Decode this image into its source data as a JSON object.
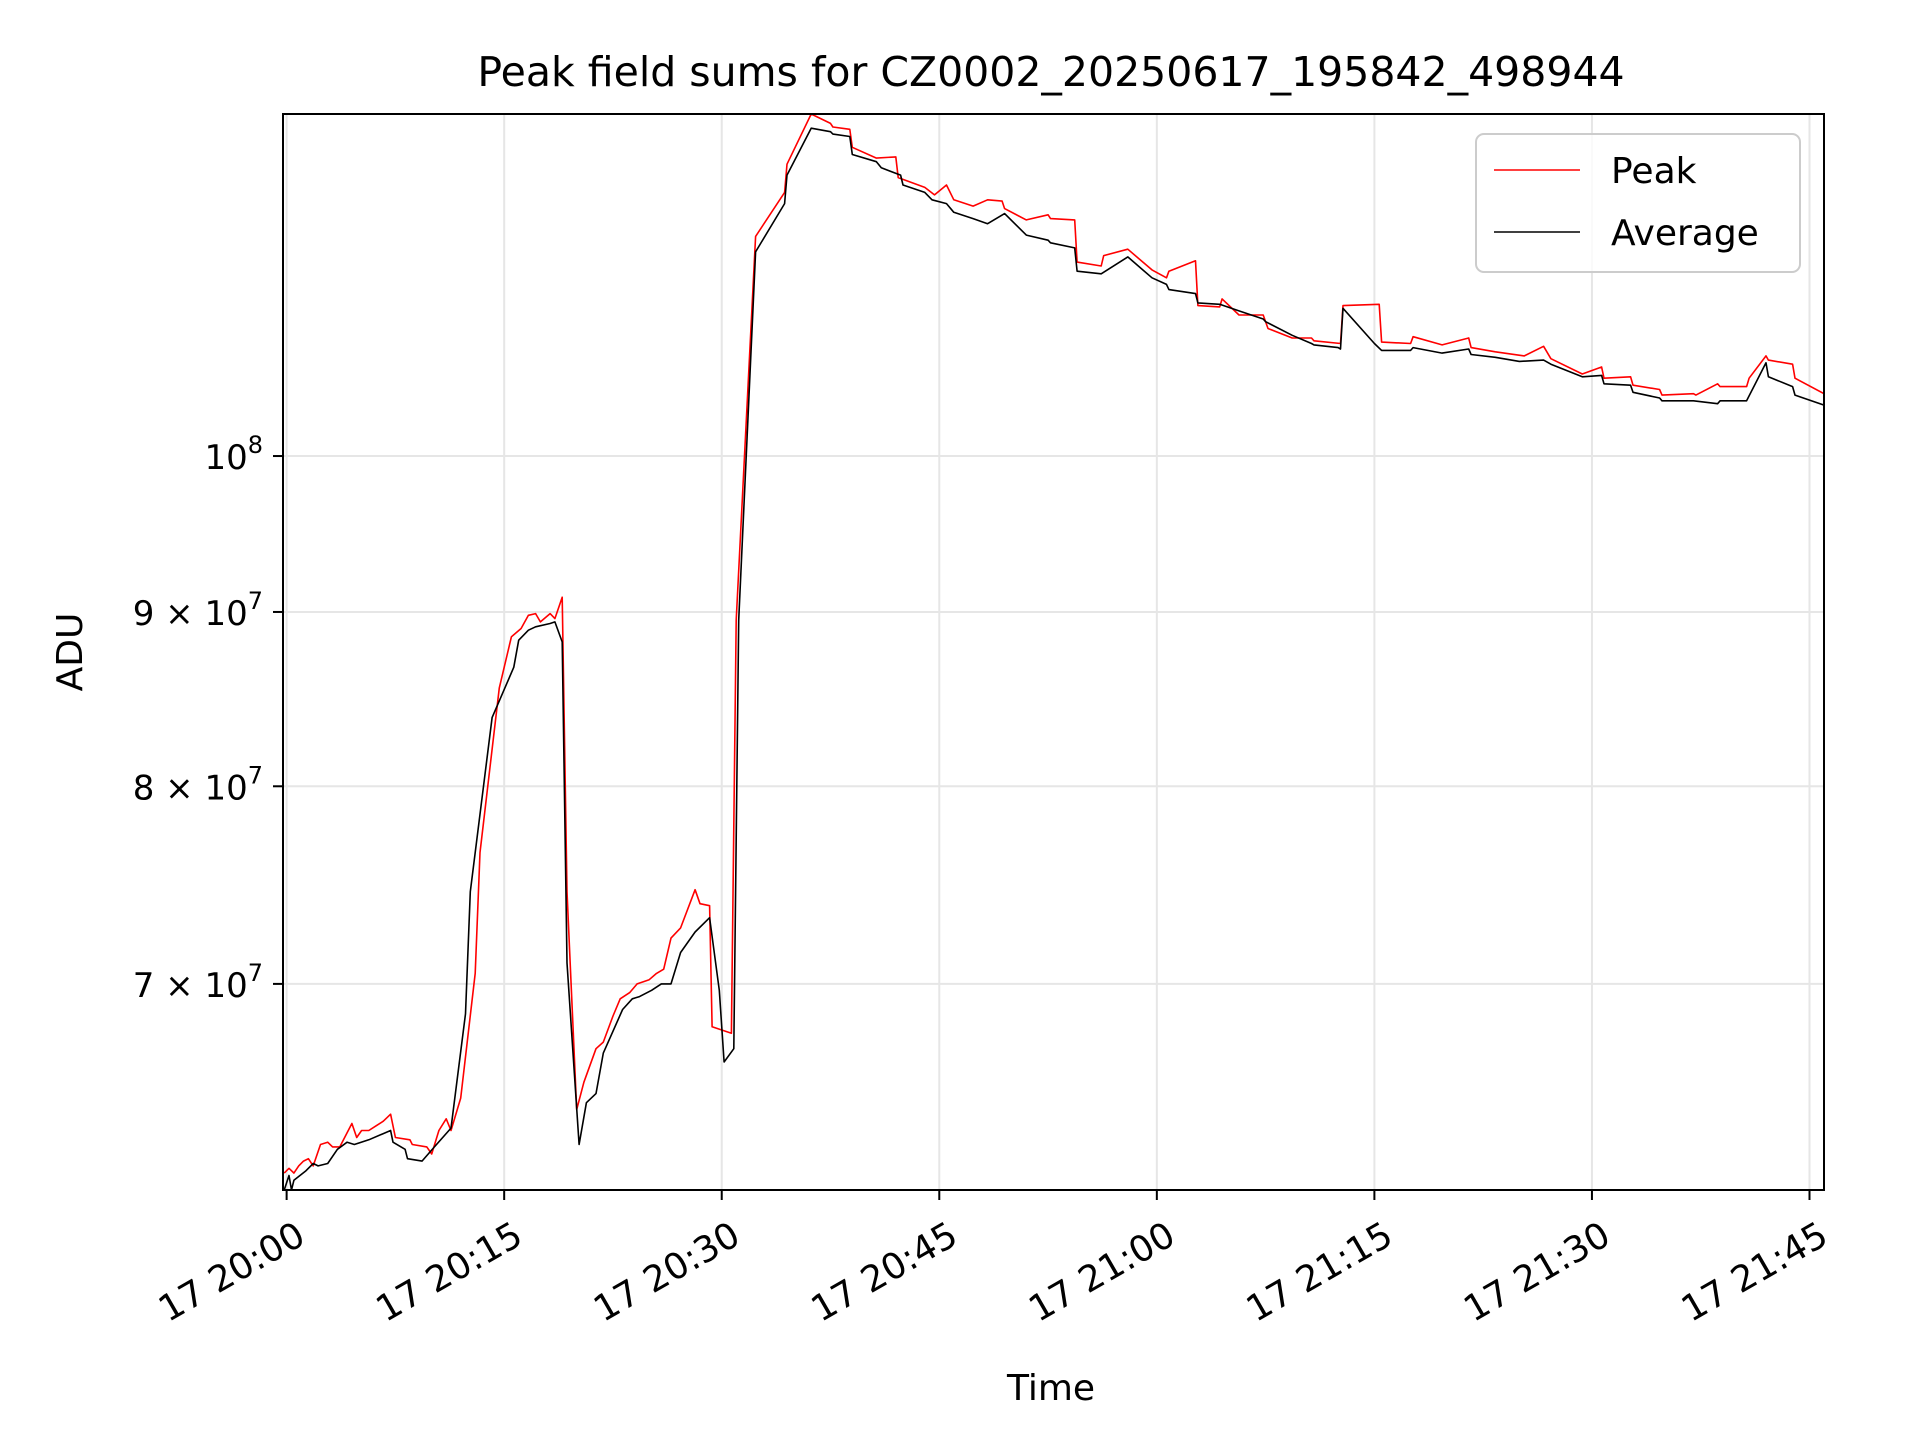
{
  "chart_data": {
    "type": "line",
    "title": "Peak field sums for CZ0002_20250617_195842_498944",
    "xlabel": "Time",
    "ylabel": "ADU",
    "yscale": "log",
    "date": "2025-06-17",
    "xlim": [
      "19:59:45",
      "21:46:00"
    ],
    "ylim": [
      60900000,
      126000000
    ],
    "x_ticks": [
      "20:00",
      "20:15",
      "20:30",
      "20:45",
      "21:00",
      "21:15",
      "21:30",
      "21:45"
    ],
    "x_tick_labels": [
      "17 20:00",
      "17 20:15",
      "17 20:30",
      "17 20:45",
      "17 21:00",
      "17 21:15",
      "17 21:30",
      "17 21:45"
    ],
    "y_ticks": [
      {
        "value": 70000000,
        "mantissa": "7",
        "exponent": "7"
      },
      {
        "value": 80000000,
        "mantissa": "8",
        "exponent": "7"
      },
      {
        "value": 90000000,
        "mantissa": "9",
        "exponent": "7"
      },
      {
        "value": 100000000,
        "mantissa": "",
        "exponent": "8"
      }
    ],
    "grid": true,
    "legend_position": "top-right",
    "series": [
      {
        "name": "Peak",
        "color": "#ff0000",
        "points": [
          [
            "19:59:50",
            61600000.0
          ],
          [
            "20:00:10",
            61800000.0
          ],
          [
            "20:00:30",
            61600000.0
          ],
          [
            "20:00:50",
            61900000.0
          ],
          [
            "20:01:10",
            62100000.0
          ],
          [
            "20:01:30",
            62200000.0
          ],
          [
            "20:01:50",
            61900000.0
          ],
          [
            "20:02:20",
            62800000.0
          ],
          [
            "20:02:50",
            62900000.0
          ],
          [
            "20:03:10",
            62700000.0
          ],
          [
            "20:03:40",
            62700000.0
          ],
          [
            "20:04:10",
            63300000.0
          ],
          [
            "20:04:30",
            63700000.0
          ],
          [
            "20:04:50",
            63100000.0
          ],
          [
            "20:05:10",
            63400000.0
          ],
          [
            "20:05:40",
            63400000.0
          ],
          [
            "20:06:10",
            63600000.0
          ],
          [
            "20:06:40",
            63800000.0
          ],
          [
            "20:07:10",
            64100000.0
          ],
          [
            "20:07:30",
            63100000.0
          ],
          [
            "20:08:30",
            63000000.0
          ],
          [
            "20:08:40",
            62800000.0
          ],
          [
            "20:09:40",
            62700000.0
          ],
          [
            "20:10:00",
            62400000.0
          ],
          [
            "20:10:30",
            63400000.0
          ],
          [
            "20:11:00",
            63900000.0
          ],
          [
            "20:11:20",
            63400000.0
          ],
          [
            "20:12:00",
            64800000.0
          ],
          [
            "20:13:00",
            70500000.0
          ],
          [
            "20:13:20",
            76500000.0
          ],
          [
            "20:14:40",
            85500000.0
          ],
          [
            "20:15:30",
            88500000.0
          ],
          [
            "20:16:10",
            89000000.0
          ],
          [
            "20:16:40",
            89800000.0
          ],
          [
            "20:17:10",
            89900000.0
          ],
          [
            "20:17:30",
            89400000.0
          ],
          [
            "20:18:10",
            89900000.0
          ],
          [
            "20:18:30",
            89600000.0
          ],
          [
            "20:19:00",
            90900000.0
          ],
          [
            "20:19:20",
            74500000.0
          ],
          [
            "20:20:00",
            64300000.0
          ],
          [
            "20:20:30",
            65500000.0
          ],
          [
            "20:21:20",
            67000000.0
          ],
          [
            "20:21:50",
            67300000.0
          ],
          [
            "20:22:30",
            68500000.0
          ],
          [
            "20:23:00",
            69300000.0
          ],
          [
            "20:23:40",
            69600000.0
          ],
          [
            "20:24:10",
            70000000.0
          ],
          [
            "20:25:00",
            70200000.0
          ],
          [
            "20:25:30",
            70500000.0
          ],
          [
            "20:26:00",
            70700000.0
          ],
          [
            "20:26:30",
            72200000.0
          ],
          [
            "20:27:10",
            72700000.0
          ],
          [
            "20:28:10",
            74600000.0
          ],
          [
            "20:28:30",
            73900000.0
          ],
          [
            "20:29:10",
            73800000.0
          ],
          [
            "20:29:20",
            68000000.0
          ],
          [
            "20:30:40",
            67700000.0
          ],
          [
            "20:31:00",
            89500000.0
          ],
          [
            "20:32:20",
            116000000.0
          ],
          [
            "20:34:20",
            119500000.0
          ],
          [
            "20:34:30",
            121800000.0
          ],
          [
            "20:36:10",
            126000000.0
          ],
          [
            "20:37:30",
            125200000.0
          ],
          [
            "20:37:40",
            124900000.0
          ],
          [
            "20:38:50",
            124700000.0
          ],
          [
            "20:39:00",
            123200000.0
          ],
          [
            "20:40:40",
            122300000.0
          ],
          [
            "20:42:00",
            122400000.0
          ],
          [
            "20:42:10",
            120700000.0
          ],
          [
            "20:44:00",
            119900000.0
          ],
          [
            "20:44:40",
            119300000.0
          ],
          [
            "20:45:30",
            120100000.0
          ],
          [
            "20:46:00",
            118900000.0
          ],
          [
            "20:47:20",
            118400000.0
          ],
          [
            "20:48:20",
            118900000.0
          ],
          [
            "20:49:20",
            118800000.0
          ],
          [
            "20:49:30",
            118200000.0
          ],
          [
            "20:51:00",
            117300000.0
          ],
          [
            "20:52:30",
            117700000.0
          ],
          [
            "20:52:40",
            117400000.0
          ],
          [
            "20:54:20",
            117300000.0
          ],
          [
            "20:54:30",
            114000000.0
          ],
          [
            "20:56:10",
            113700000.0
          ],
          [
            "20:56:20",
            114500000.0
          ],
          [
            "20:58:00",
            115000000.0
          ],
          [
            "20:59:40",
            113400000.0
          ],
          [
            "21:00:40",
            112800000.0
          ],
          [
            "21:00:50",
            113300000.0
          ],
          [
            "21:02:40",
            114100000.0
          ],
          [
            "21:02:50",
            110700000.0
          ],
          [
            "21:04:20",
            110600000.0
          ],
          [
            "21:04:30",
            111200000.0
          ],
          [
            "21:05:40",
            110000000.0
          ],
          [
            "21:07:20",
            110000000.0
          ],
          [
            "21:07:40",
            109000000.0
          ],
          [
            "21:09:20",
            108300000.0
          ],
          [
            "21:10:40",
            108300000.0
          ],
          [
            "21:10:50",
            108100000.0
          ],
          [
            "21:12:40",
            107900000.0
          ],
          [
            "21:12:50",
            110700000.0
          ],
          [
            "21:15:20",
            110800000.0
          ],
          [
            "21:15:30",
            108000000.0
          ],
          [
            "21:17:30",
            107900000.0
          ],
          [
            "21:17:40",
            108400000.0
          ],
          [
            "21:19:40",
            107800000.0
          ],
          [
            "21:21:30",
            108300000.0
          ],
          [
            "21:21:40",
            107600000.0
          ],
          [
            "21:23:20",
            107300000.0
          ],
          [
            "21:25:20",
            107000000.0
          ],
          [
            "21:26:40",
            107700000.0
          ],
          [
            "21:27:10",
            106800000.0
          ],
          [
            "21:29:20",
            105700000.0
          ],
          [
            "21:30:40",
            106200000.0
          ],
          [
            "21:30:50",
            105400000.0
          ],
          [
            "21:32:40",
            105500000.0
          ],
          [
            "21:32:50",
            104900000.0
          ],
          [
            "21:34:40",
            104600000.0
          ],
          [
            "21:34:50",
            104200000.0
          ],
          [
            "21:37:00",
            104300000.0
          ],
          [
            "21:37:10",
            104200000.0
          ],
          [
            "21:38:40",
            105000000.0
          ],
          [
            "21:38:50",
            104800000.0
          ],
          [
            "21:40:40",
            104800000.0
          ],
          [
            "21:40:50",
            105400000.0
          ],
          [
            "21:42:00",
            107000000.0
          ],
          [
            "21:42:10",
            106700000.0
          ],
          [
            "21:43:50",
            106400000.0
          ],
          [
            "21:44:00",
            105400000.0
          ],
          [
            "21:46:00",
            104300000.0
          ]
        ]
      },
      {
        "name": "Average",
        "color": "#000000",
        "points": [
          [
            "19:59:50",
            60900000.0
          ],
          [
            "20:00:10",
            61500000.0
          ],
          [
            "20:00:20",
            60900000.0
          ],
          [
            "20:00:30",
            61300000.0
          ],
          [
            "20:01:20",
            61700000.0
          ],
          [
            "20:01:50",
            62000000.0
          ],
          [
            "20:02:10",
            61900000.0
          ],
          [
            "20:02:50",
            62000000.0
          ],
          [
            "20:03:30",
            62600000.0
          ],
          [
            "20:04:10",
            62900000.0
          ],
          [
            "20:04:40",
            62800000.0
          ],
          [
            "20:05:40",
            63000000.0
          ],
          [
            "20:07:10",
            63400000.0
          ],
          [
            "20:07:20",
            62900000.0
          ],
          [
            "20:08:10",
            62600000.0
          ],
          [
            "20:08:20",
            62200000.0
          ],
          [
            "20:09:20",
            62100000.0
          ],
          [
            "20:10:20",
            62800000.0
          ],
          [
            "20:11:20",
            63500000.0
          ],
          [
            "20:12:20",
            68600000.0
          ],
          [
            "20:12:40",
            74500000.0
          ],
          [
            "20:14:10",
            83800000.0
          ],
          [
            "20:15:40",
            86700000.0
          ],
          [
            "20:16:00",
            88300000.0
          ],
          [
            "20:16:40",
            88900000.0
          ],
          [
            "20:17:10",
            89100000.0
          ],
          [
            "20:18:10",
            89300000.0
          ],
          [
            "20:18:30",
            89400000.0
          ],
          [
            "20:19:00",
            88200000.0
          ],
          [
            "20:19:20",
            71000000.0
          ],
          [
            "20:20:10",
            62800000.0
          ],
          [
            "20:20:40",
            64600000.0
          ],
          [
            "20:21:20",
            65000000.0
          ],
          [
            "20:21:50",
            66800000.0
          ],
          [
            "20:22:30",
            67800000.0
          ],
          [
            "20:23:10",
            68800000.0
          ],
          [
            "20:23:50",
            69300000.0
          ],
          [
            "20:24:20",
            69400000.0
          ],
          [
            "20:25:10",
            69700000.0
          ],
          [
            "20:25:50",
            70000000.0
          ],
          [
            "20:26:30",
            70000000.0
          ],
          [
            "20:27:10",
            71500000.0
          ],
          [
            "20:28:10",
            72500000.0
          ],
          [
            "20:29:10",
            73200000.0
          ],
          [
            "20:29:50",
            69700000.0
          ],
          [
            "20:30:10",
            66400000.0
          ],
          [
            "20:30:50",
            67000000.0
          ],
          [
            "20:31:10",
            89500000.0
          ],
          [
            "20:32:20",
            114800000.0
          ],
          [
            "20:34:20",
            118600000.0
          ],
          [
            "20:34:30",
            120900000.0
          ],
          [
            "20:36:10",
            124800000.0
          ],
          [
            "20:37:30",
            124500000.0
          ],
          [
            "20:37:40",
            124300000.0
          ],
          [
            "20:38:50",
            124100000.0
          ],
          [
            "20:39:00",
            122600000.0
          ],
          [
            "20:40:40",
            122000000.0
          ],
          [
            "20:41:00",
            121500000.0
          ],
          [
            "20:42:20",
            120900000.0
          ],
          [
            "20:42:30",
            120100000.0
          ],
          [
            "20:44:00",
            119500000.0
          ],
          [
            "20:44:30",
            118900000.0
          ],
          [
            "20:45:30",
            118600000.0
          ],
          [
            "20:46:00",
            117900000.0
          ],
          [
            "20:47:20",
            117400000.0
          ],
          [
            "20:48:20",
            117000000.0
          ],
          [
            "20:49:30",
            117800000.0
          ],
          [
            "20:51:00",
            116100000.0
          ],
          [
            "20:52:30",
            115700000.0
          ],
          [
            "20:52:40",
            115500000.0
          ],
          [
            "20:54:20",
            115100000.0
          ],
          [
            "20:54:30",
            113300000.0
          ],
          [
            "20:56:10",
            113100000.0
          ],
          [
            "20:58:00",
            114400000.0
          ],
          [
            "20:59:40",
            112800000.0
          ],
          [
            "21:00:40",
            112300000.0
          ],
          [
            "21:00:50",
            111900000.0
          ],
          [
            "21:02:40",
            111600000.0
          ],
          [
            "21:02:50",
            110900000.0
          ],
          [
            "21:04:20",
            110800000.0
          ],
          [
            "21:05:40",
            110300000.0
          ],
          [
            "21:07:20",
            109700000.0
          ],
          [
            "21:07:30",
            109500000.0
          ],
          [
            "21:09:20",
            108500000.0
          ],
          [
            "21:10:40",
            107900000.0
          ],
          [
            "21:10:50",
            107800000.0
          ],
          [
            "21:12:30",
            107600000.0
          ],
          [
            "21:12:40",
            107500000.0
          ],
          [
            "21:12:50",
            110500000.0
          ],
          [
            "21:15:00",
            107900000.0
          ],
          [
            "21:15:30",
            107400000.0
          ],
          [
            "21:17:30",
            107400000.0
          ],
          [
            "21:17:40",
            107600000.0
          ],
          [
            "21:19:40",
            107200000.0
          ],
          [
            "21:21:30",
            107500000.0
          ],
          [
            "21:21:40",
            107100000.0
          ],
          [
            "21:23:20",
            106900000.0
          ],
          [
            "21:25:00",
            106600000.0
          ],
          [
            "21:26:40",
            106700000.0
          ],
          [
            "21:27:10",
            106400000.0
          ],
          [
            "21:29:20",
            105500000.0
          ],
          [
            "21:30:40",
            105600000.0
          ],
          [
            "21:30:50",
            105000000.0
          ],
          [
            "21:32:40",
            104900000.0
          ],
          [
            "21:32:50",
            104400000.0
          ],
          [
            "21:34:40",
            104000000.0
          ],
          [
            "21:34:50",
            103800000.0
          ],
          [
            "21:37:00",
            103800000.0
          ],
          [
            "21:38:40",
            103600000.0
          ],
          [
            "21:38:50",
            103800000.0
          ],
          [
            "21:40:40",
            103800000.0
          ],
          [
            "21:42:00",
            106500000.0
          ],
          [
            "21:42:10",
            105500000.0
          ],
          [
            "21:43:50",
            104800000.0
          ],
          [
            "21:44:00",
            104200000.0
          ],
          [
            "21:46:00",
            103500000.0
          ]
        ]
      }
    ]
  }
}
